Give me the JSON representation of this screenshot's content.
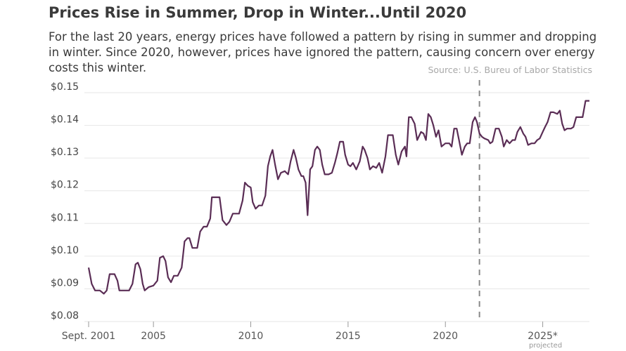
{
  "chart_data": {
    "type": "line",
    "title": "Prices Rise in Summer, Drop in Winter...Until 2020",
    "subtitle": "For the last 20 years, energy prices have followed a pattern by rising in summer and dropping in winter. Since 2020, however, prices have ignored the pattern, causing concern over energy costs this winter.",
    "source": "Source: U.S. Bureu of Labor Statistics",
    "xlabel": "",
    "ylabel": "",
    "x_range": [
      2001.67,
      2027.4
    ],
    "ylim": [
      0.08,
      0.15
    ],
    "y_ticks": [
      {
        "value": 0.15,
        "label": "$0.15"
      },
      {
        "value": 0.14,
        "label": "$0.14"
      },
      {
        "value": 0.13,
        "label": "$0.13"
      },
      {
        "value": 0.12,
        "label": "$0.12"
      },
      {
        "value": 0.11,
        "label": "$0.11"
      },
      {
        "value": 0.1,
        "label": "$0.10"
      },
      {
        "value": 0.09,
        "label": "$0.09"
      },
      {
        "value": 0.08,
        "label": "$0.08"
      }
    ],
    "x_ticks": [
      {
        "value": 2001.67,
        "label": "Sept. 2001",
        "sub": ""
      },
      {
        "value": 2005,
        "label": "2005",
        "sub": ""
      },
      {
        "value": 2010,
        "label": "2010",
        "sub": ""
      },
      {
        "value": 2015,
        "label": "2015",
        "sub": ""
      },
      {
        "value": 2020,
        "label": "2020",
        "sub": ""
      },
      {
        "value": 2025,
        "label": "2025*",
        "sub": "projected"
      }
    ],
    "projection_start": 2021.75,
    "grid": "horizontal",
    "colors": {
      "line": "#5a2d55",
      "grid": "#e6e6e6",
      "divider": "#888888"
    },
    "series": [
      {
        "name": "",
        "points": [
          [
            2001.67,
            0.0965
          ],
          [
            2001.83,
            0.0915
          ],
          [
            2002.0,
            0.0895
          ],
          [
            2002.25,
            0.0895
          ],
          [
            2002.45,
            0.0885
          ],
          [
            2002.6,
            0.0895
          ],
          [
            2002.75,
            0.0945
          ],
          [
            2003.0,
            0.0945
          ],
          [
            2003.15,
            0.0925
          ],
          [
            2003.25,
            0.0895
          ],
          [
            2003.5,
            0.0895
          ],
          [
            2003.75,
            0.0895
          ],
          [
            2003.92,
            0.0915
          ],
          [
            2004.08,
            0.0975
          ],
          [
            2004.2,
            0.098
          ],
          [
            2004.33,
            0.096
          ],
          [
            2004.45,
            0.0915
          ],
          [
            2004.55,
            0.0895
          ],
          [
            2004.75,
            0.0905
          ],
          [
            2005.0,
            0.091
          ],
          [
            2005.2,
            0.0925
          ],
          [
            2005.33,
            0.0995
          ],
          [
            2005.5,
            0.1
          ],
          [
            2005.62,
            0.0985
          ],
          [
            2005.75,
            0.0935
          ],
          [
            2005.9,
            0.092
          ],
          [
            2006.05,
            0.094
          ],
          [
            2006.25,
            0.094
          ],
          [
            2006.45,
            0.0965
          ],
          [
            2006.6,
            0.1045
          ],
          [
            2006.75,
            0.1055
          ],
          [
            2006.85,
            0.1055
          ],
          [
            2007.0,
            0.1025
          ],
          [
            2007.25,
            0.1025
          ],
          [
            2007.4,
            0.1075
          ],
          [
            2007.58,
            0.109
          ],
          [
            2007.75,
            0.109
          ],
          [
            2007.92,
            0.1115
          ],
          [
            2008.0,
            0.118
          ],
          [
            2008.4,
            0.118
          ],
          [
            2008.55,
            0.111
          ],
          [
            2008.75,
            0.1095
          ],
          [
            2008.9,
            0.1105
          ],
          [
            2009.08,
            0.113
          ],
          [
            2009.4,
            0.113
          ],
          [
            2009.58,
            0.117
          ],
          [
            2009.7,
            0.1225
          ],
          [
            2009.85,
            0.1215
          ],
          [
            2010.0,
            0.121
          ],
          [
            2010.1,
            0.1165
          ],
          [
            2010.25,
            0.1145
          ],
          [
            2010.42,
            0.1155
          ],
          [
            2010.58,
            0.1155
          ],
          [
            2010.75,
            0.1185
          ],
          [
            2010.88,
            0.1275
          ],
          [
            2011.0,
            0.1305
          ],
          [
            2011.12,
            0.1325
          ],
          [
            2011.25,
            0.128
          ],
          [
            2011.4,
            0.1235
          ],
          [
            2011.55,
            0.1255
          ],
          [
            2011.75,
            0.126
          ],
          [
            2011.92,
            0.125
          ],
          [
            2012.05,
            0.129
          ],
          [
            2012.2,
            0.1325
          ],
          [
            2012.32,
            0.13
          ],
          [
            2012.45,
            0.1265
          ],
          [
            2012.6,
            0.1245
          ],
          [
            2012.7,
            0.1245
          ],
          [
            2012.82,
            0.1225
          ],
          [
            2012.92,
            0.1125
          ],
          [
            2013.05,
            0.1265
          ],
          [
            2013.17,
            0.1275
          ],
          [
            2013.3,
            0.1325
          ],
          [
            2013.42,
            0.1335
          ],
          [
            2013.55,
            0.1325
          ],
          [
            2013.67,
            0.128
          ],
          [
            2013.8,
            0.125
          ],
          [
            2014.0,
            0.125
          ],
          [
            2014.17,
            0.1255
          ],
          [
            2014.32,
            0.1285
          ],
          [
            2014.45,
            0.1315
          ],
          [
            2014.58,
            0.135
          ],
          [
            2014.75,
            0.135
          ],
          [
            2014.85,
            0.131
          ],
          [
            2015.0,
            0.128
          ],
          [
            2015.12,
            0.1275
          ],
          [
            2015.25,
            0.1285
          ],
          [
            2015.42,
            0.1265
          ],
          [
            2015.6,
            0.129
          ],
          [
            2015.75,
            0.1335
          ],
          [
            2015.85,
            0.1325
          ],
          [
            2016.0,
            0.13
          ],
          [
            2016.12,
            0.1265
          ],
          [
            2016.28,
            0.1275
          ],
          [
            2016.45,
            0.127
          ],
          [
            2016.6,
            0.1285
          ],
          [
            2016.75,
            0.1255
          ],
          [
            2016.92,
            0.1305
          ],
          [
            2017.05,
            0.137
          ],
          [
            2017.3,
            0.137
          ],
          [
            2017.45,
            0.131
          ],
          [
            2017.58,
            0.128
          ],
          [
            2017.75,
            0.132
          ],
          [
            2017.92,
            0.1335
          ],
          [
            2018.0,
            0.1305
          ],
          [
            2018.12,
            0.1425
          ],
          [
            2018.25,
            0.1425
          ],
          [
            2018.42,
            0.1405
          ],
          [
            2018.55,
            0.1355
          ],
          [
            2018.75,
            0.138
          ],
          [
            2018.88,
            0.1375
          ],
          [
            2019.0,
            0.1355
          ],
          [
            2019.12,
            0.1435
          ],
          [
            2019.25,
            0.1425
          ],
          [
            2019.38,
            0.14
          ],
          [
            2019.52,
            0.1365
          ],
          [
            2019.65,
            0.1385
          ],
          [
            2019.8,
            0.1335
          ],
          [
            2020.0,
            0.1345
          ],
          [
            2020.2,
            0.1345
          ],
          [
            2020.32,
            0.1335
          ],
          [
            2020.45,
            0.139
          ],
          [
            2020.58,
            0.139
          ],
          [
            2020.7,
            0.1355
          ],
          [
            2020.85,
            0.131
          ],
          [
            2021.0,
            0.1335
          ],
          [
            2021.12,
            0.1345
          ],
          [
            2021.25,
            0.1345
          ],
          [
            2021.4,
            0.141
          ],
          [
            2021.52,
            0.1425
          ],
          [
            2021.62,
            0.141
          ],
          [
            2021.75,
            0.1375
          ],
          [
            2021.88,
            0.1365
          ],
          [
            2022.0,
            0.136
          ],
          [
            2022.2,
            0.1355
          ],
          [
            2022.3,
            0.1345
          ],
          [
            2022.42,
            0.135
          ],
          [
            2022.58,
            0.139
          ],
          [
            2022.75,
            0.139
          ],
          [
            2022.9,
            0.1365
          ],
          [
            2023.0,
            0.1335
          ],
          [
            2023.15,
            0.1355
          ],
          [
            2023.3,
            0.1345
          ],
          [
            2023.45,
            0.1355
          ],
          [
            2023.58,
            0.1355
          ],
          [
            2023.7,
            0.138
          ],
          [
            2023.85,
            0.1395
          ],
          [
            2024.0,
            0.1375
          ],
          [
            2024.12,
            0.1365
          ],
          [
            2024.25,
            0.134
          ],
          [
            2024.42,
            0.1345
          ],
          [
            2024.58,
            0.1345
          ],
          [
            2024.72,
            0.1355
          ],
          [
            2024.85,
            0.136
          ],
          [
            2025.0,
            0.138
          ],
          [
            2025.12,
            0.1395
          ],
          [
            2025.25,
            0.141
          ],
          [
            2025.4,
            0.144
          ],
          [
            2025.55,
            0.144
          ],
          [
            2025.75,
            0.1435
          ],
          [
            2025.88,
            0.1445
          ],
          [
            2026.0,
            0.1405
          ],
          [
            2026.12,
            0.1385
          ],
          [
            2026.25,
            0.139
          ],
          [
            2026.45,
            0.139
          ],
          [
            2026.58,
            0.1395
          ],
          [
            2026.72,
            0.1425
          ],
          [
            2026.9,
            0.1425
          ],
          [
            2027.05,
            0.1425
          ],
          [
            2027.2,
            0.1475
          ],
          [
            2027.4,
            0.1475
          ]
        ]
      }
    ]
  }
}
